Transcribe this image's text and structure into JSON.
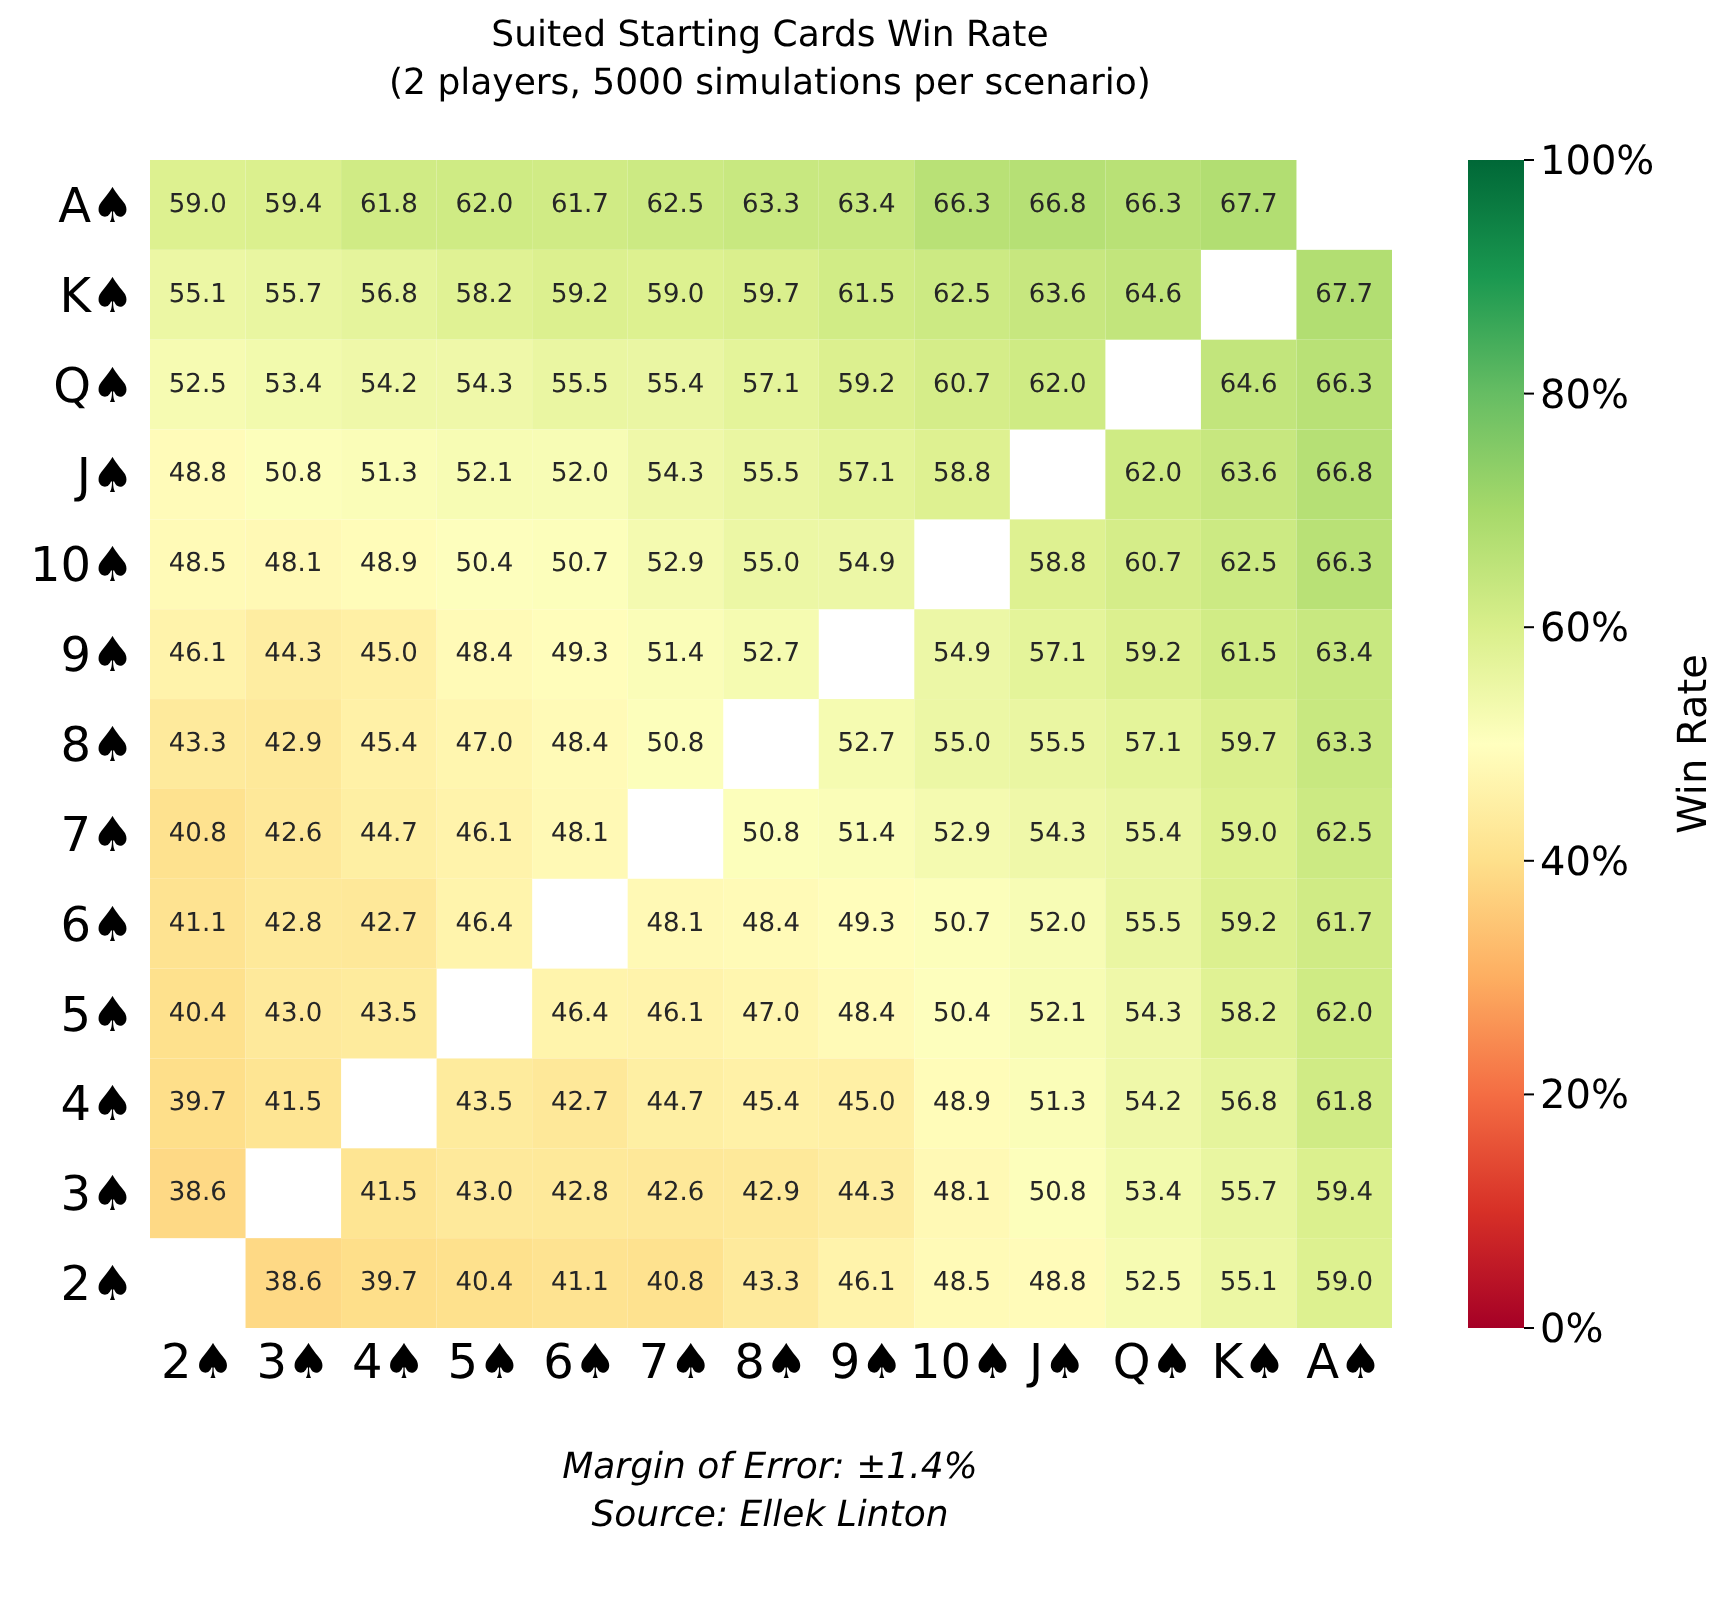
{
  "chart_data": {
    "type": "heatmap",
    "title": "Suited Starting Cards Win Rate",
    "subtitle": "(2 players, 5000 simulations per scenario)",
    "clabel": "Win Rate",
    "annotations": [
      "Margin of Error: ±1.4%",
      "Source: Ellek Linton"
    ],
    "categories": [
      "2♠",
      "3♠",
      "4♠",
      "5♠",
      "6♠",
      "7♠",
      "8♠",
      "9♠",
      "10♠",
      "J♠",
      "Q♠",
      "K♠",
      "A♠"
    ],
    "y_categories": [
      "A♠",
      "K♠",
      "Q♠",
      "J♠",
      "10♠",
      "9♠",
      "8♠",
      "7♠",
      "6♠",
      "5♠",
      "4♠",
      "3♠",
      "2♠"
    ],
    "cells": [
      [
        59.0,
        59.4,
        61.8,
        62.0,
        61.7,
        62.5,
        63.3,
        63.4,
        66.3,
        66.8,
        66.3,
        67.7,
        null
      ],
      [
        55.1,
        55.7,
        56.8,
        58.2,
        59.2,
        59.0,
        59.7,
        61.5,
        62.5,
        63.6,
        64.6,
        null,
        67.7
      ],
      [
        52.5,
        53.4,
        54.2,
        54.3,
        55.5,
        55.4,
        57.1,
        59.2,
        60.7,
        62.0,
        null,
        64.6,
        66.3
      ],
      [
        48.8,
        50.8,
        51.3,
        52.1,
        52.0,
        54.3,
        55.5,
        57.1,
        58.8,
        null,
        62.0,
        63.6,
        66.8
      ],
      [
        48.5,
        48.1,
        48.9,
        50.4,
        50.7,
        52.9,
        55.0,
        54.9,
        null,
        58.8,
        60.7,
        62.5,
        66.3
      ],
      [
        46.1,
        44.3,
        45.0,
        48.4,
        49.3,
        51.4,
        52.7,
        null,
        54.9,
        57.1,
        59.2,
        61.5,
        63.4
      ],
      [
        43.3,
        42.9,
        45.4,
        47.0,
        48.4,
        50.8,
        null,
        52.7,
        55.0,
        55.5,
        57.1,
        59.7,
        63.3
      ],
      [
        40.8,
        42.6,
        44.7,
        46.1,
        48.1,
        null,
        50.8,
        51.4,
        52.9,
        54.3,
        55.4,
        59.0,
        62.5
      ],
      [
        41.1,
        42.8,
        42.7,
        46.4,
        null,
        48.1,
        48.4,
        49.3,
        50.7,
        52.0,
        55.5,
        59.2,
        61.7
      ],
      [
        40.4,
        43.0,
        43.5,
        null,
        46.4,
        46.1,
        47.0,
        48.4,
        50.4,
        52.1,
        54.3,
        58.2,
        62.0
      ],
      [
        39.7,
        41.5,
        null,
        43.5,
        42.7,
        44.7,
        45.4,
        45.0,
        48.9,
        51.3,
        54.2,
        56.8,
        61.8
      ],
      [
        38.6,
        null,
        41.5,
        43.0,
        42.8,
        42.6,
        42.9,
        44.3,
        48.1,
        50.8,
        53.4,
        55.7,
        59.4
      ],
      [
        null,
        38.6,
        39.7,
        40.4,
        41.1,
        40.8,
        43.3,
        46.1,
        48.5,
        48.8,
        52.5,
        55.1,
        59.0
      ]
    ],
    "cell_labels": [
      [
        "59.0",
        "59.4",
        "61.8",
        "62.0",
        "61.7",
        "62.5",
        "63.3",
        "63.4",
        "66.3",
        "66.8",
        "66.3",
        "67.7",
        null
      ],
      [
        "55.1",
        "55.7",
        "56.8",
        "58.2",
        "59.2",
        "59.0",
        "59.7",
        "61.5",
        "62.5",
        "63.6",
        "64.6",
        null,
        "67.7"
      ],
      [
        "52.5",
        "53.4",
        "54.2",
        "54.3",
        "55.5",
        "55.4",
        "57.1",
        "59.2",
        "60.7",
        "62.0",
        null,
        "64.6",
        "66.3"
      ],
      [
        "48.8",
        "50.8",
        "51.3",
        "52.1",
        "52.0",
        "54.3",
        "55.5",
        "57.1",
        "58.8",
        null,
        "62.0",
        "63.6",
        "66.8"
      ],
      [
        "48.5",
        "48.1",
        "48.9",
        "50.4",
        "50.7",
        "52.9",
        "55.0",
        "54.9",
        null,
        "58.8",
        "60.7",
        "62.5",
        "66.3"
      ],
      [
        "46.1",
        "44.3",
        "45.0",
        "48.4",
        "49.3",
        "51.4",
        "52.7",
        null,
        "54.9",
        "57.1",
        "59.2",
        "61.5",
        "63.4"
      ],
      [
        "43.3",
        "42.9",
        "45.4",
        "47.0",
        "48.4",
        "50.8",
        null,
        "52.7",
        "55.0",
        "55.5",
        "57.1",
        "59.7",
        "63.3"
      ],
      [
        "40.8",
        "42.6",
        "44.7",
        "46.1",
        "48.1",
        null,
        "50.8",
        "51.4",
        "52.9",
        "54.3",
        "55.4",
        "59.0",
        "62.5"
      ],
      [
        "41.1",
        "42.8",
        "42.7",
        "46.4",
        null,
        "48.1",
        "48.4",
        "49.3",
        "50.7",
        "52.0",
        "55.5",
        "59.2",
        "61.7"
      ],
      [
        "40.4",
        "43.0",
        "43.5",
        null,
        "46.4",
        "46.1",
        "47.0",
        "48.4",
        "50.4",
        "52.1",
        "54.3",
        "58.2",
        "62.0"
      ],
      [
        "39.7",
        "41.5",
        null,
        "43.5",
        "42.7",
        "44.7",
        "45.4",
        "45.0",
        "48.9",
        "51.3",
        "54.2",
        "56.8",
        "61.8"
      ],
      [
        "38.6",
        null,
        "41.5",
        "43.0",
        "42.8",
        "42.6",
        "42.9",
        "44.3",
        "48.1",
        "50.8",
        "53.4",
        "55.7",
        "59.4"
      ],
      [
        null,
        "38.6",
        "39.7",
        "40.4",
        "41.1",
        "40.8",
        "43.3",
        "46.1",
        "48.5",
        "48.8",
        "52.5",
        "55.1",
        "59.0"
      ]
    ],
    "clim": [
      0,
      100
    ],
    "cticks": [
      {
        "value": 0,
        "label": "0%"
      },
      {
        "value": 20,
        "label": "20%"
      },
      {
        "value": 40,
        "label": "40%"
      },
      {
        "value": 60,
        "label": "60%"
      },
      {
        "value": 80,
        "label": "80%"
      },
      {
        "value": 100,
        "label": "100%"
      }
    ]
  }
}
